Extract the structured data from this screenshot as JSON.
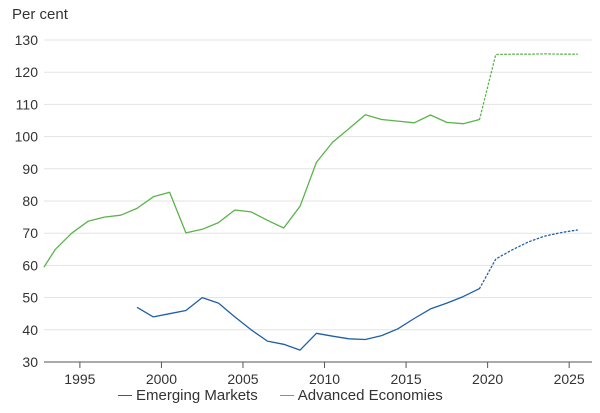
{
  "chart_data": {
    "type": "line",
    "unit_label": "Per cent",
    "xlim": [
      1992.8,
      2026.4
    ],
    "ylim": [
      30,
      130
    ],
    "y_ticks": [
      30,
      40,
      50,
      60,
      70,
      80,
      90,
      100,
      110,
      120,
      130
    ],
    "x_ticks": [
      1995,
      2000,
      2005,
      2010,
      2015,
      2020,
      2025
    ],
    "grid": "horizontal",
    "legend_position": "bottom",
    "colors": {
      "emerging": "#1f5fa8",
      "advanced": "#5ab44a",
      "grid": "#e3e3e3",
      "axis": "#555555"
    },
    "series": [
      {
        "name": "Emerging Markets",
        "color": "#1f5fa8",
        "solid": [
          [
            1998.5,
            47.0
          ],
          [
            1999.5,
            44.0
          ],
          [
            2000.5,
            45.0
          ],
          [
            2001.5,
            46.0
          ],
          [
            2002.5,
            50.0
          ],
          [
            2003.5,
            48.3
          ],
          [
            2004.5,
            44.0
          ],
          [
            2005.5,
            40.0
          ],
          [
            2006.5,
            36.5
          ],
          [
            2007.5,
            35.5
          ],
          [
            2008.5,
            33.7
          ],
          [
            2009.5,
            38.9
          ],
          [
            2010.5,
            38.0
          ],
          [
            2011.5,
            37.2
          ],
          [
            2012.5,
            37.0
          ],
          [
            2013.5,
            38.2
          ],
          [
            2014.5,
            40.3
          ],
          [
            2015.5,
            43.5
          ],
          [
            2016.5,
            46.5
          ],
          [
            2017.5,
            48.3
          ],
          [
            2018.5,
            50.3
          ],
          [
            2019.5,
            52.8
          ]
        ],
        "projected": [
          [
            2019.5,
            52.8
          ],
          [
            2020.5,
            62.0
          ],
          [
            2021.5,
            64.8
          ],
          [
            2022.5,
            67.3
          ],
          [
            2023.5,
            69.1
          ],
          [
            2024.5,
            70.2
          ],
          [
            2025.5,
            71.0
          ]
        ]
      },
      {
        "name": "Advanced Economies",
        "color": "#5ab44a",
        "solid": [
          [
            1992.8,
            59.5
          ],
          [
            1993.5,
            65.0
          ],
          [
            1994.5,
            70.0
          ],
          [
            1995.5,
            73.7
          ],
          [
            1996.5,
            75.0
          ],
          [
            1997.5,
            75.6
          ],
          [
            1998.5,
            77.7
          ],
          [
            1999.5,
            81.3
          ],
          [
            2000.5,
            82.7
          ],
          [
            2001.5,
            70.1
          ],
          [
            2002.5,
            71.2
          ],
          [
            2003.5,
            73.3
          ],
          [
            2004.5,
            77.2
          ],
          [
            2005.5,
            76.6
          ],
          [
            2006.5,
            74.0
          ],
          [
            2007.5,
            71.6
          ],
          [
            2008.5,
            78.4
          ],
          [
            2009.5,
            92.0
          ],
          [
            2010.5,
            98.3
          ],
          [
            2011.5,
            102.5
          ],
          [
            2012.5,
            106.8
          ],
          [
            2013.5,
            105.3
          ],
          [
            2014.5,
            104.8
          ],
          [
            2015.5,
            104.3
          ],
          [
            2016.5,
            106.7
          ],
          [
            2017.5,
            104.4
          ],
          [
            2018.5,
            104.0
          ],
          [
            2019.5,
            105.3
          ]
        ],
        "projected": [
          [
            2019.5,
            105.3
          ],
          [
            2020.5,
            125.5
          ],
          [
            2021.5,
            125.6
          ],
          [
            2022.5,
            125.6
          ],
          [
            2023.5,
            125.7
          ],
          [
            2024.5,
            125.6
          ],
          [
            2025.5,
            125.6
          ]
        ]
      }
    ]
  }
}
